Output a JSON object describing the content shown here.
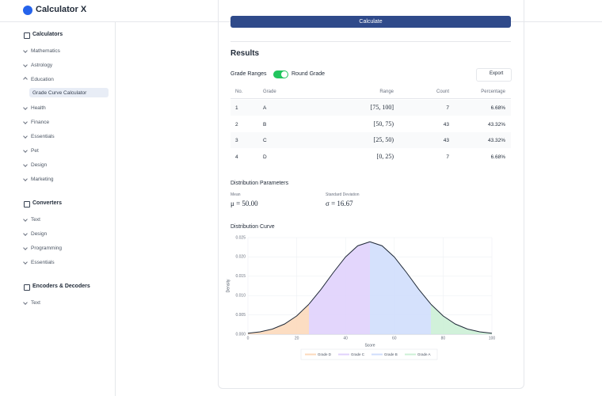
{
  "app": {
    "title": "Calculator X"
  },
  "sidebar": [
    {
      "title": "Calculators",
      "items": [
        {
          "label": "Mathematics"
        },
        {
          "label": "Astrology"
        },
        {
          "label": "Education",
          "children": [
            "Grade Curve Calculator"
          ]
        },
        {
          "label": "Health"
        },
        {
          "label": "Finance"
        },
        {
          "label": "Essentials"
        },
        {
          "label": "Pet"
        },
        {
          "label": "Design"
        },
        {
          "label": "Marketing"
        }
      ]
    },
    {
      "title": "Converters",
      "items": [
        {
          "label": "Text"
        },
        {
          "label": "Design"
        },
        {
          "label": "Programming"
        },
        {
          "label": "Essentials"
        }
      ]
    },
    {
      "title": "Encoders & Decoders",
      "items": [
        {
          "label": "Text"
        }
      ]
    }
  ],
  "main": {
    "button": "Calculate",
    "results_title": "Results",
    "toggle_label": "Grade Ranges",
    "round_label": "Round Grade",
    "export": "Export",
    "table": {
      "headers": [
        "No.",
        "Grade",
        "Range",
        "Count",
        "Percentage"
      ],
      "rows": [
        [
          1,
          "A",
          "[75, 100]",
          7,
          "6.68%"
        ],
        [
          2,
          "B",
          "[50, 75)",
          43,
          "43.32%"
        ],
        [
          3,
          "C",
          "[25, 50)",
          43,
          "43.32%"
        ],
        [
          4,
          "D",
          "[0, 25)",
          7,
          "6.68%"
        ]
      ]
    },
    "params_title": "Distribution Parameters",
    "mean_label": "Mean",
    "mean": "μ = 50.00",
    "sd_label": "Standard Deviation",
    "sd": "σ = 16.67"
  },
  "chart_data": {
    "type": "area",
    "title": "Distribution Curve",
    "x_label": "Score",
    "y_label": "Density",
    "xlim": [
      0,
      100
    ],
    "xticks": [
      0,
      20,
      40,
      60,
      80,
      100
    ],
    "ylim": [
      0,
      0.025
    ],
    "yticks": [
      {
        "value": 0,
        "label": "0.000"
      },
      {
        "value": 0.005,
        "label": "0.005"
      },
      {
        "value": 0.01,
        "label": "0.010"
      },
      {
        "value": 0.015,
        "label": "0.015"
      },
      {
        "value": 0.02,
        "label": "0.020"
      },
      {
        "value": 0.025,
        "label": "0.025"
      }
    ],
    "grid": true,
    "line_color": "#1f2937",
    "series": [
      {
        "name": "Grade D",
        "color": "#fcd9bb",
        "x": [
          0,
          5,
          10,
          15,
          20,
          25
        ],
        "values": [
          0.000266,
          0.000625,
          0.00134,
          0.00264,
          0.00474,
          0.00777
        ]
      },
      {
        "name": "Grade C",
        "color": "#e0d2fc",
        "x": [
          25,
          30,
          35,
          40,
          45,
          50
        ],
        "values": [
          0.00777,
          0.01165,
          0.01596,
          0.01999,
          0.02288,
          0.02393
        ]
      },
      {
        "name": "Grade B",
        "color": "#d0defc",
        "x": [
          50,
          55,
          60,
          65,
          70,
          75
        ],
        "values": [
          0.02393,
          0.02288,
          0.01999,
          0.01596,
          0.01165,
          0.00777
        ]
      },
      {
        "name": "Grade A",
        "color": "#ccf0d6",
        "x": [
          75,
          80,
          85,
          90,
          95,
          100
        ],
        "values": [
          0.00777,
          0.00474,
          0.00264,
          0.00134,
          0.000625,
          0.000266
        ]
      }
    ]
  }
}
